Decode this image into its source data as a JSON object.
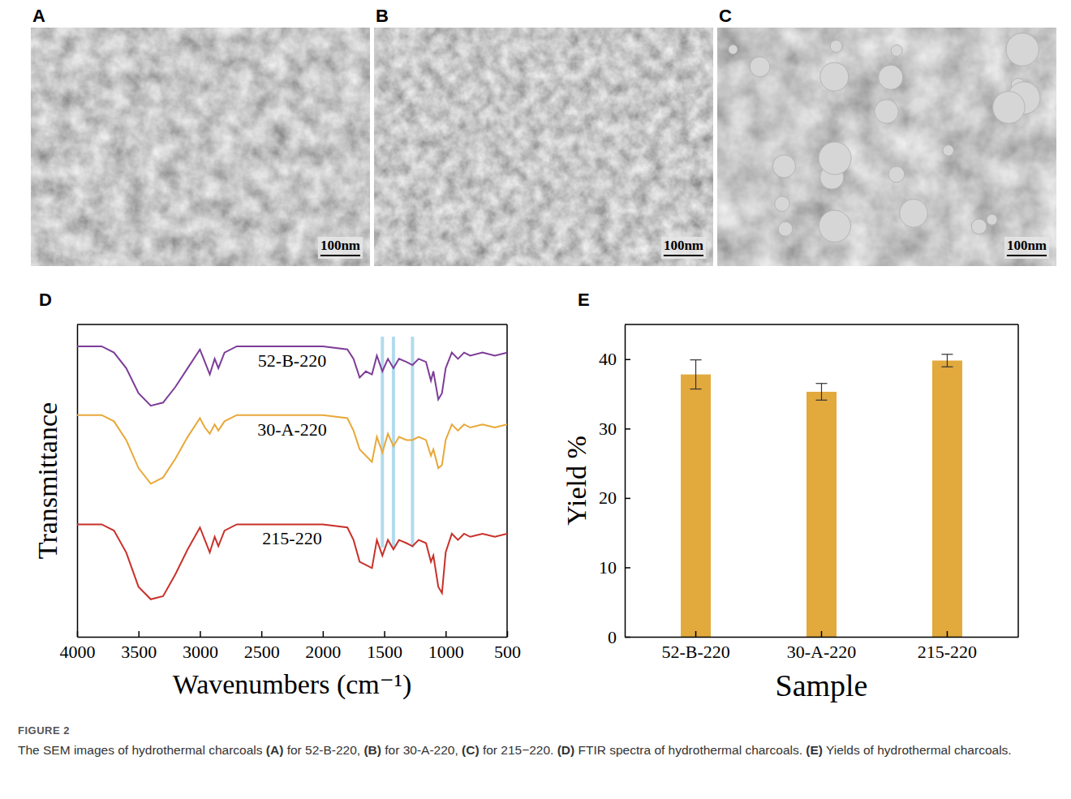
{
  "images": [
    {
      "panel": "A",
      "scale_bar": "100nm"
    },
    {
      "panel": "B",
      "scale_bar": "100nm"
    },
    {
      "panel": "C",
      "scale_bar": "100nm"
    }
  ],
  "chart_data": [
    {
      "type": "line",
      "panel": "D",
      "x_label": "Wavenumbers (cm⁻¹)",
      "y_label": "Transmittance",
      "x": [
        4000,
        3800,
        3700,
        3600,
        3500,
        3400,
        3300,
        3200,
        3100,
        3000,
        2960,
        2920,
        2880,
        2850,
        2800,
        2700,
        2500,
        2000,
        1800,
        1750,
        1700,
        1650,
        1600,
        1560,
        1515,
        1470,
        1425,
        1380,
        1320,
        1270,
        1220,
        1160,
        1120,
        1100,
        1060,
        1030,
        1000,
        950,
        900,
        850,
        800,
        700,
        600,
        500
      ],
      "series": [
        {
          "name": "52-B-220",
          "color": "#7d3c98",
          "values": [
            93,
            93,
            91,
            86,
            78,
            74,
            75,
            80,
            86,
            92,
            88,
            84,
            89,
            86,
            91,
            93,
            93,
            93,
            92,
            89,
            83,
            85,
            84,
            90,
            85,
            89,
            86,
            89,
            88,
            87,
            89,
            88,
            82,
            85,
            76,
            78,
            86,
            91,
            89,
            91,
            90,
            91,
            90,
            91
          ]
        },
        {
          "name": "30-A-220",
          "color": "#e8a838",
          "values": [
            71,
            71,
            69,
            63,
            54,
            49,
            51,
            57,
            64,
            70,
            67,
            65,
            68,
            66,
            69,
            71,
            71,
            71,
            70,
            66,
            60,
            58,
            56,
            64,
            59,
            65,
            61,
            64,
            63,
            63,
            64,
            63,
            58,
            60,
            54,
            55,
            63,
            68,
            66,
            68,
            67,
            68,
            67,
            68
          ]
        },
        {
          "name": "215-220",
          "color": "#c8312a",
          "values": [
            36,
            36,
            34,
            27,
            16,
            12,
            13,
            20,
            28,
            35,
            31,
            27,
            32,
            29,
            34,
            36,
            36,
            36,
            35,
            31,
            24,
            23,
            22,
            31,
            26,
            31,
            28,
            31,
            30,
            29,
            31,
            30,
            24,
            26,
            16,
            14,
            27,
            33,
            31,
            33,
            32,
            33,
            32,
            33
          ]
        }
      ],
      "xlim": [
        4000,
        500
      ],
      "ylim": [
        0,
        100
      ],
      "xticks": [
        4000,
        3500,
        3000,
        2500,
        2000,
        1500,
        1000,
        500
      ],
      "yticks": [],
      "tick_labels": "x",
      "reference_lines": [
        1515,
        1425,
        1270
      ]
    },
    {
      "type": "bar",
      "panel": "E",
      "x_label": "Sample",
      "y_label": "Yield %",
      "categories": [
        "52-B-220",
        "30-A-220",
        "215-220"
      ],
      "values": [
        37.8,
        35.3,
        39.8
      ],
      "errors": [
        2.1,
        1.2,
        0.9
      ],
      "color": "#e2a93d",
      "ylim": [
        0,
        45
      ],
      "yticks": [
        0,
        10,
        20,
        30,
        40
      ]
    }
  ],
  "caption": {
    "label": "FIGURE 2",
    "text": "The SEM images of hydrothermal charcoals (A) for 52-B-220, (B) for 30-A-220, (C) for 215−220. (D) FTIR spectra of hydrothermal charcoals. (E) Yields of hydrothermal charcoals."
  }
}
